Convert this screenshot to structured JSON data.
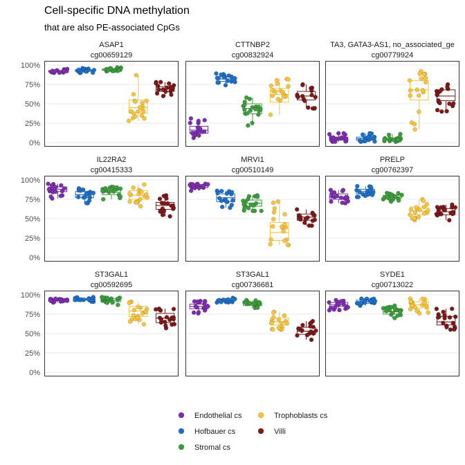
{
  "chart_data": {
    "type": "scatter",
    "title": "Cell-specific DNA methylation",
    "subtitle": "that are also PE-associated CpGs",
    "xlabel": "",
    "ylabel": "",
    "ylim": [
      0,
      1
    ],
    "yticks": [
      "0%",
      "25%",
      "50%",
      "75%",
      "100%"
    ],
    "grid": true,
    "legend_position": "bottom",
    "groups": [
      "Endothelial cs",
      "Hofbauer cs",
      "Stromal cs",
      "Trophoblasts cs",
      "Villi"
    ],
    "colors": {
      "Endothelial cs": "#7B2FAB",
      "Hofbauer cs": "#1F6FC5",
      "Stromal cs": "#3E9B3E",
      "Trophoblasts cs": "#F7C43C",
      "Villi": "#7A1A1A"
    },
    "panels": [
      {
        "gene": "ASAP1",
        "probe": "cg00659129",
        "stats": [
          [
            0.9,
            0.91,
            0.92,
            0.93,
            0.95
          ],
          [
            0.9,
            0.92,
            0.93,
            0.94,
            0.96
          ],
          [
            0.92,
            0.93,
            0.94,
            0.95,
            0.97
          ],
          [
            0.28,
            0.38,
            0.45,
            0.55,
            0.87
          ],
          [
            0.6,
            0.66,
            0.69,
            0.72,
            0.78
          ]
        ]
      },
      {
        "gene": "CTTNBP2",
        "probe": "cg00832924",
        "stats": [
          [
            0.06,
            0.12,
            0.16,
            0.21,
            0.31
          ],
          [
            0.74,
            0.79,
            0.82,
            0.85,
            0.89
          ],
          [
            0.22,
            0.37,
            0.44,
            0.5,
            0.58
          ],
          [
            0.36,
            0.52,
            0.62,
            0.7,
            0.82
          ],
          [
            0.44,
            0.55,
            0.6,
            0.66,
            0.75
          ]
        ]
      },
      {
        "gene": "TA3, GATA3-AS1, no_associated_ge",
        "probe": "cg00779924",
        "stats": [
          [
            0.01,
            0.03,
            0.05,
            0.07,
            0.12
          ],
          [
            0.01,
            0.03,
            0.05,
            0.07,
            0.12
          ],
          [
            0.01,
            0.03,
            0.04,
            0.06,
            0.11
          ],
          [
            0.17,
            0.55,
            0.68,
            0.8,
            0.92
          ],
          [
            0.4,
            0.54,
            0.6,
            0.68,
            0.75
          ]
        ]
      },
      {
        "gene": "IL22RA2",
        "probe": "cg00415333",
        "stats": [
          [
            0.76,
            0.85,
            0.88,
            0.91,
            0.95
          ],
          [
            0.7,
            0.77,
            0.81,
            0.85,
            0.89
          ],
          [
            0.75,
            0.81,
            0.84,
            0.88,
            0.91
          ],
          [
            0.66,
            0.75,
            0.8,
            0.86,
            0.94
          ],
          [
            0.53,
            0.62,
            0.67,
            0.71,
            0.8
          ]
        ]
      },
      {
        "gene": "MRVI1",
        "probe": "cg00510149",
        "stats": [
          [
            0.86,
            0.9,
            0.92,
            0.94,
            0.95
          ],
          [
            0.64,
            0.72,
            0.77,
            0.82,
            0.86
          ],
          [
            0.6,
            0.66,
            0.7,
            0.74,
            0.8
          ],
          [
            0.16,
            0.22,
            0.32,
            0.45,
            0.72
          ],
          [
            0.41,
            0.48,
            0.52,
            0.56,
            0.62
          ]
        ]
      },
      {
        "gene": "PRELP",
        "probe": "cg00762397",
        "stats": [
          [
            0.7,
            0.75,
            0.78,
            0.82,
            0.87
          ],
          [
            0.78,
            0.82,
            0.85,
            0.88,
            0.92
          ],
          [
            0.72,
            0.76,
            0.78,
            0.8,
            0.83
          ],
          [
            0.48,
            0.55,
            0.6,
            0.65,
            0.75
          ],
          [
            0.48,
            0.55,
            0.59,
            0.63,
            0.68
          ]
        ]
      },
      {
        "gene": "ST3GAL1",
        "probe": "cg00592695",
        "stats": [
          [
            0.9,
            0.92,
            0.93,
            0.94,
            0.95
          ],
          [
            0.91,
            0.93,
            0.94,
            0.95,
            0.97
          ],
          [
            0.87,
            0.91,
            0.93,
            0.95,
            0.97
          ],
          [
            0.62,
            0.72,
            0.79,
            0.85,
            0.91
          ],
          [
            0.57,
            0.64,
            0.7,
            0.76,
            0.82
          ]
        ]
      },
      {
        "gene": "ST3GAL1",
        "probe": "cg00736681",
        "stats": [
          [
            0.76,
            0.82,
            0.85,
            0.88,
            0.92
          ],
          [
            0.9,
            0.92,
            0.93,
            0.94,
            0.96
          ],
          [
            0.83,
            0.86,
            0.88,
            0.9,
            0.93
          ],
          [
            0.55,
            0.61,
            0.65,
            0.7,
            0.78
          ],
          [
            0.42,
            0.49,
            0.53,
            0.58,
            0.66
          ]
        ]
      },
      {
        "gene": "SYDE1",
        "probe": "cg00713022",
        "stats": [
          [
            0.8,
            0.85,
            0.87,
            0.9,
            0.93
          ],
          [
            0.86,
            0.89,
            0.91,
            0.93,
            0.95
          ],
          [
            0.7,
            0.75,
            0.78,
            0.82,
            0.86
          ],
          [
            0.76,
            0.83,
            0.87,
            0.91,
            0.95
          ],
          [
            0.55,
            0.61,
            0.65,
            0.72,
            0.82
          ]
        ]
      }
    ]
  }
}
